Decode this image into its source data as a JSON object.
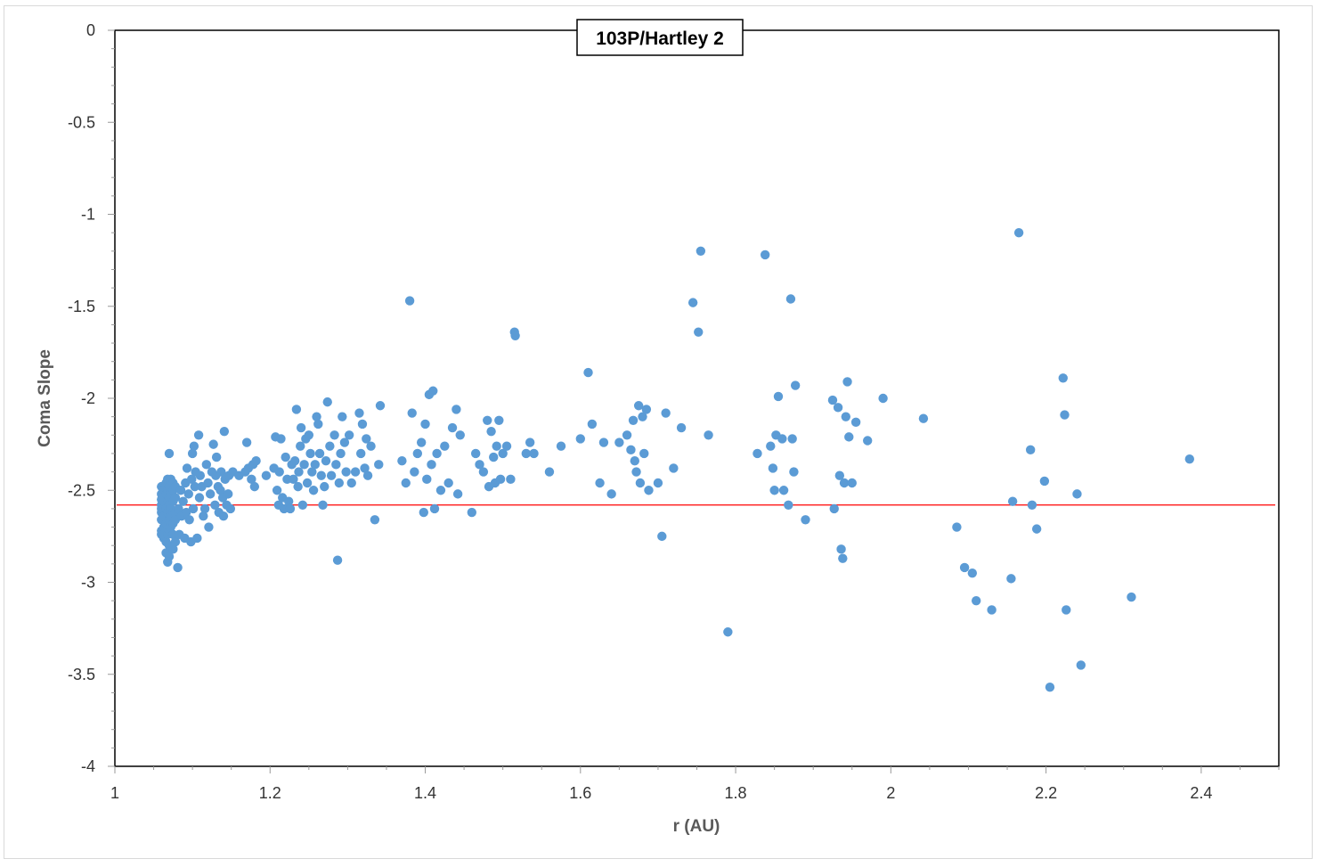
{
  "chart_data": {
    "type": "scatter",
    "title": "103P/Hartley 2",
    "xlabel": "r (AU)",
    "ylabel": "Coma Slope",
    "xlim": [
      1,
      2.5
    ],
    "ylim": [
      -4,
      0
    ],
    "x_ticks": [
      "1",
      "1.2",
      "1.4",
      "1.6",
      "1.8",
      "2",
      "2.2",
      "2.4"
    ],
    "y_ticks": [
      "0",
      "-0.5",
      "-1",
      "-1.5",
      "-2",
      "-2.5",
      "-3",
      "-3.5",
      "-4"
    ],
    "grid": false,
    "legend": "none",
    "marker_color": "#5b9bd5",
    "reference_line": {
      "y": -2.58,
      "color": "#ff0000"
    },
    "series": [
      {
        "points": [
          [
            1.06,
            -2.48
          ],
          [
            1.06,
            -2.52
          ],
          [
            1.06,
            -2.55
          ],
          [
            1.06,
            -2.58
          ],
          [
            1.06,
            -2.6
          ],
          [
            1.06,
            -2.62
          ],
          [
            1.06,
            -2.66
          ],
          [
            1.06,
            -2.72
          ],
          [
            1.06,
            -2.74
          ],
          [
            1.063,
            -2.5
          ],
          [
            1.063,
            -2.56
          ],
          [
            1.063,
            -2.64
          ],
          [
            1.063,
            -2.7
          ],
          [
            1.063,
            -2.76
          ],
          [
            1.066,
            -2.46
          ],
          [
            1.066,
            -2.52
          ],
          [
            1.066,
            -2.6
          ],
          [
            1.066,
            -2.68
          ],
          [
            1.066,
            -2.78
          ],
          [
            1.066,
            -2.84
          ],
          [
            1.068,
            -2.44
          ],
          [
            1.068,
            -2.5
          ],
          [
            1.068,
            -2.56
          ],
          [
            1.068,
            -2.62
          ],
          [
            1.068,
            -2.74
          ],
          [
            1.068,
            -2.89
          ],
          [
            1.07,
            -2.3
          ],
          [
            1.07,
            -2.48
          ],
          [
            1.07,
            -2.54
          ],
          [
            1.07,
            -2.58
          ],
          [
            1.07,
            -2.66
          ],
          [
            1.07,
            -2.72
          ],
          [
            1.07,
            -2.8
          ],
          [
            1.07,
            -2.86
          ],
          [
            1.072,
            -2.44
          ],
          [
            1.072,
            -2.52
          ],
          [
            1.072,
            -2.6
          ],
          [
            1.072,
            -2.64
          ],
          [
            1.072,
            -2.7
          ],
          [
            1.075,
            -2.46
          ],
          [
            1.075,
            -2.5
          ],
          [
            1.075,
            -2.56
          ],
          [
            1.075,
            -2.62
          ],
          [
            1.075,
            -2.68
          ],
          [
            1.075,
            -2.74
          ],
          [
            1.075,
            -2.82
          ],
          [
            1.078,
            -2.48
          ],
          [
            1.078,
            -2.54
          ],
          [
            1.078,
            -2.62
          ],
          [
            1.078,
            -2.66
          ],
          [
            1.078,
            -2.78
          ],
          [
            1.081,
            -2.92
          ],
          [
            1.082,
            -2.6
          ],
          [
            1.083,
            -2.74
          ],
          [
            1.085,
            -2.5
          ],
          [
            1.086,
            -2.64
          ],
          [
            1.088,
            -2.56
          ],
          [
            1.09,
            -2.76
          ],
          [
            1.091,
            -2.46
          ],
          [
            1.092,
            -2.62
          ],
          [
            1.093,
            -2.38
          ],
          [
            1.095,
            -2.52
          ],
          [
            1.096,
            -2.66
          ],
          [
            1.098,
            -2.78
          ],
          [
            1.099,
            -2.44
          ],
          [
            1.1,
            -2.3
          ],
          [
            1.101,
            -2.6
          ],
          [
            1.102,
            -2.26
          ],
          [
            1.103,
            -2.48
          ],
          [
            1.104,
            -2.4
          ],
          [
            1.106,
            -2.76
          ],
          [
            1.108,
            -2.2
          ],
          [
            1.109,
            -2.54
          ],
          [
            1.11,
            -2.42
          ],
          [
            1.112,
            -2.48
          ],
          [
            1.114,
            -2.64
          ],
          [
            1.116,
            -2.6
          ],
          [
            1.118,
            -2.36
          ],
          [
            1.12,
            -2.46
          ],
          [
            1.121,
            -2.7
          ],
          [
            1.123,
            -2.52
          ],
          [
            1.125,
            -2.4
          ],
          [
            1.127,
            -2.25
          ],
          [
            1.129,
            -2.58
          ],
          [
            1.13,
            -2.42
          ],
          [
            1.131,
            -2.32
          ],
          [
            1.133,
            -2.48
          ],
          [
            1.134,
            -2.62
          ],
          [
            1.136,
            -2.5
          ],
          [
            1.137,
            -2.4
          ],
          [
            1.139,
            -2.54
          ],
          [
            1.14,
            -2.64
          ],
          [
            1.141,
            -2.18
          ],
          [
            1.142,
            -2.44
          ],
          [
            1.144,
            -2.58
          ],
          [
            1.146,
            -2.52
          ],
          [
            1.147,
            -2.42
          ],
          [
            1.149,
            -2.6
          ],
          [
            1.152,
            -2.4
          ],
          [
            1.16,
            -2.42
          ],
          [
            1.168,
            -2.4
          ],
          [
            1.17,
            -2.24
          ],
          [
            1.172,
            -2.38
          ],
          [
            1.176,
            -2.44
          ],
          [
            1.178,
            -2.36
          ],
          [
            1.18,
            -2.48
          ],
          [
            1.182,
            -2.34
          ],
          [
            1.195,
            -2.42
          ],
          [
            1.205,
            -2.38
          ],
          [
            1.207,
            -2.21
          ],
          [
            1.209,
            -2.5
          ],
          [
            1.211,
            -2.58
          ],
          [
            1.212,
            -2.4
          ],
          [
            1.214,
            -2.22
          ],
          [
            1.216,
            -2.54
          ],
          [
            1.218,
            -2.6
          ],
          [
            1.22,
            -2.32
          ],
          [
            1.222,
            -2.44
          ],
          [
            1.224,
            -2.56
          ],
          [
            1.226,
            -2.6
          ],
          [
            1.228,
            -2.36
          ],
          [
            1.23,
            -2.44
          ],
          [
            1.232,
            -2.34
          ],
          [
            1.234,
            -2.06
          ],
          [
            1.236,
            -2.48
          ],
          [
            1.237,
            -2.4
          ],
          [
            1.239,
            -2.26
          ],
          [
            1.24,
            -2.16
          ],
          [
            1.242,
            -2.58
          ],
          [
            1.244,
            -2.36
          ],
          [
            1.246,
            -2.22
          ],
          [
            1.248,
            -2.46
          ],
          [
            1.25,
            -2.2
          ],
          [
            1.252,
            -2.3
          ],
          [
            1.254,
            -2.4
          ],
          [
            1.256,
            -2.5
          ],
          [
            1.258,
            -2.36
          ],
          [
            1.26,
            -2.1
          ],
          [
            1.262,
            -2.14
          ],
          [
            1.264,
            -2.3
          ],
          [
            1.266,
            -2.42
          ],
          [
            1.268,
            -2.58
          ],
          [
            1.27,
            -2.48
          ],
          [
            1.272,
            -2.34
          ],
          [
            1.274,
            -2.02
          ],
          [
            1.277,
            -2.26
          ],
          [
            1.279,
            -2.42
          ],
          [
            1.283,
            -2.2
          ],
          [
            1.285,
            -2.36
          ],
          [
            1.287,
            -2.88
          ],
          [
            1.289,
            -2.46
          ],
          [
            1.291,
            -2.3
          ],
          [
            1.293,
            -2.1
          ],
          [
            1.296,
            -2.24
          ],
          [
            1.298,
            -2.4
          ],
          [
            1.302,
            -2.2
          ],
          [
            1.305,
            -2.46
          ],
          [
            1.31,
            -2.4
          ],
          [
            1.315,
            -2.08
          ],
          [
            1.317,
            -2.3
          ],
          [
            1.319,
            -2.14
          ],
          [
            1.322,
            -2.38
          ],
          [
            1.324,
            -2.22
          ],
          [
            1.326,
            -2.42
          ],
          [
            1.33,
            -2.26
          ],
          [
            1.335,
            -2.66
          ],
          [
            1.34,
            -2.36
          ],
          [
            1.342,
            -2.04
          ],
          [
            1.37,
            -2.34
          ],
          [
            1.375,
            -2.46
          ],
          [
            1.38,
            -1.47
          ],
          [
            1.383,
            -2.08
          ],
          [
            1.386,
            -2.4
          ],
          [
            1.39,
            -2.3
          ],
          [
            1.395,
            -2.24
          ],
          [
            1.398,
            -2.62
          ],
          [
            1.4,
            -2.14
          ],
          [
            1.402,
            -2.44
          ],
          [
            1.405,
            -1.98
          ],
          [
            1.408,
            -2.36
          ],
          [
            1.41,
            -1.96
          ],
          [
            1.412,
            -2.6
          ],
          [
            1.415,
            -2.3
          ],
          [
            1.42,
            -2.5
          ],
          [
            1.425,
            -2.26
          ],
          [
            1.43,
            -2.46
          ],
          [
            1.435,
            -2.16
          ],
          [
            1.44,
            -2.06
          ],
          [
            1.442,
            -2.52
          ],
          [
            1.445,
            -2.2
          ],
          [
            1.46,
            -2.62
          ],
          [
            1.465,
            -2.3
          ],
          [
            1.47,
            -2.36
          ],
          [
            1.475,
            -2.4
          ],
          [
            1.48,
            -2.12
          ],
          [
            1.482,
            -2.48
          ],
          [
            1.485,
            -2.18
          ],
          [
            1.488,
            -2.32
          ],
          [
            1.49,
            -2.46
          ],
          [
            1.492,
            -2.26
          ],
          [
            1.495,
            -2.12
          ],
          [
            1.497,
            -2.44
          ],
          [
            1.5,
            -2.3
          ],
          [
            1.505,
            -2.26
          ],
          [
            1.51,
            -2.44
          ],
          [
            1.515,
            -1.64
          ],
          [
            1.516,
            -1.66
          ],
          [
            1.53,
            -2.3
          ],
          [
            1.535,
            -2.24
          ],
          [
            1.54,
            -2.3
          ],
          [
            1.56,
            -2.4
          ],
          [
            1.575,
            -2.26
          ],
          [
            1.6,
            -2.22
          ],
          [
            1.61,
            -1.86
          ],
          [
            1.615,
            -2.14
          ],
          [
            1.625,
            -2.46
          ],
          [
            1.63,
            -2.24
          ],
          [
            1.64,
            -2.52
          ],
          [
            1.65,
            -2.24
          ],
          [
            1.66,
            -2.2
          ],
          [
            1.665,
            -2.28
          ],
          [
            1.668,
            -2.12
          ],
          [
            1.67,
            -2.34
          ],
          [
            1.672,
            -2.4
          ],
          [
            1.675,
            -2.04
          ],
          [
            1.677,
            -2.46
          ],
          [
            1.68,
            -2.1
          ],
          [
            1.682,
            -2.3
          ],
          [
            1.685,
            -2.06
          ],
          [
            1.688,
            -2.5
          ],
          [
            1.7,
            -2.46
          ],
          [
            1.705,
            -2.75
          ],
          [
            1.71,
            -2.08
          ],
          [
            1.72,
            -2.38
          ],
          [
            1.73,
            -2.16
          ],
          [
            1.745,
            -1.48
          ],
          [
            1.752,
            -1.64
          ],
          [
            1.755,
            -1.2
          ],
          [
            1.765,
            -2.2
          ],
          [
            1.79,
            -3.27
          ],
          [
            1.828,
            -2.3
          ],
          [
            1.838,
            -1.22
          ],
          [
            1.845,
            -2.26
          ],
          [
            1.848,
            -2.38
          ],
          [
            1.85,
            -2.5
          ],
          [
            1.852,
            -2.2
          ],
          [
            1.855,
            -1.99
          ],
          [
            1.86,
            -2.22
          ],
          [
            1.862,
            -2.5
          ],
          [
            1.868,
            -2.58
          ],
          [
            1.871,
            -1.46
          ],
          [
            1.873,
            -2.22
          ],
          [
            1.875,
            -2.4
          ],
          [
            1.877,
            -1.93
          ],
          [
            1.89,
            -2.66
          ],
          [
            1.925,
            -2.01
          ],
          [
            1.927,
            -2.6
          ],
          [
            1.932,
            -2.05
          ],
          [
            1.934,
            -2.42
          ],
          [
            1.936,
            -2.82
          ],
          [
            1.938,
            -2.87
          ],
          [
            1.94,
            -2.46
          ],
          [
            1.942,
            -2.1
          ],
          [
            1.944,
            -1.91
          ],
          [
            1.946,
            -2.21
          ],
          [
            1.95,
            -2.46
          ],
          [
            1.955,
            -2.13
          ],
          [
            1.97,
            -2.23
          ],
          [
            1.99,
            -2.0
          ],
          [
            2.042,
            -2.11
          ],
          [
            2.085,
            -2.7
          ],
          [
            2.095,
            -2.92
          ],
          [
            2.105,
            -2.95
          ],
          [
            2.11,
            -3.1
          ],
          [
            2.13,
            -3.15
          ],
          [
            2.155,
            -2.98
          ],
          [
            2.157,
            -2.56
          ],
          [
            2.165,
            -1.1
          ],
          [
            2.18,
            -2.28
          ],
          [
            2.182,
            -2.58
          ],
          [
            2.188,
            -2.71
          ],
          [
            2.198,
            -2.45
          ],
          [
            2.205,
            -3.57
          ],
          [
            2.222,
            -1.89
          ],
          [
            2.224,
            -2.09
          ],
          [
            2.226,
            -3.15
          ],
          [
            2.24,
            -2.52
          ],
          [
            2.245,
            -3.45
          ],
          [
            2.31,
            -3.08
          ],
          [
            2.385,
            -2.33
          ]
        ]
      }
    ]
  }
}
